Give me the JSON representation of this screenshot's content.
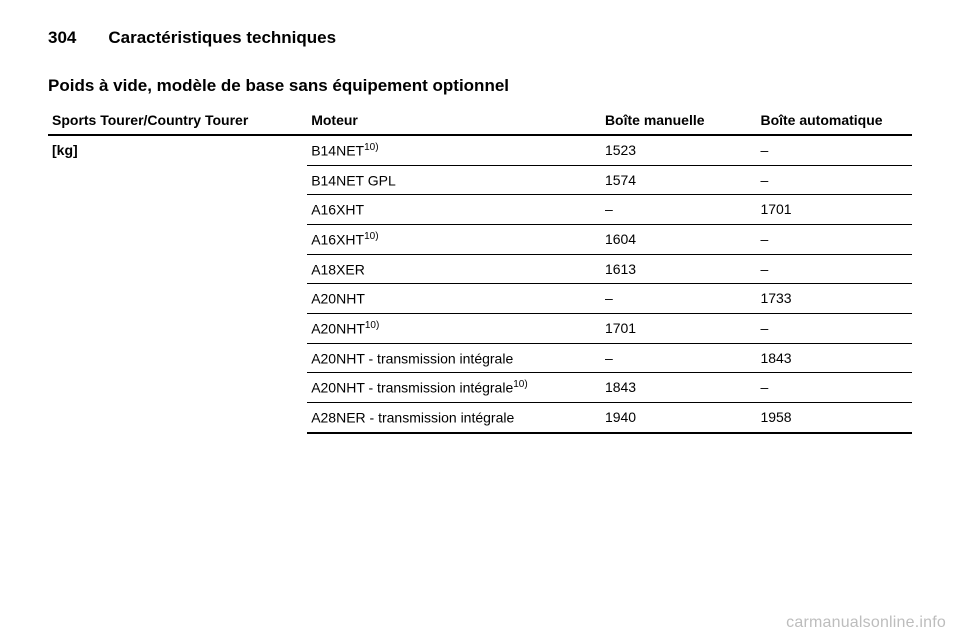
{
  "page_number": "304",
  "chapter_title": "Caractéristiques techniques",
  "subtitle": "Poids à vide, modèle de base sans équipement optionnel",
  "columns": {
    "vehicle": "Sports Tourer/Country Tourer",
    "engine": "Moteur",
    "manual": "Boîte manuelle",
    "auto": "Boîte automatique"
  },
  "unit_label": "[kg]",
  "footnote_marker": "10)",
  "rows": [
    {
      "engine": "B14NET",
      "note": "10)",
      "manual": "1523",
      "auto": "–"
    },
    {
      "engine": "B14NET GPL",
      "note": "",
      "manual": "1574",
      "auto": "–"
    },
    {
      "engine": "A16XHT",
      "note": "",
      "manual": "–",
      "auto": "1701"
    },
    {
      "engine": "A16XHT",
      "note": "10)",
      "manual": "1604",
      "auto": "–"
    },
    {
      "engine": "A18XER",
      "note": "",
      "manual": "1613",
      "auto": "–"
    },
    {
      "engine": "A20NHT",
      "note": "",
      "manual": "–",
      "auto": "1733"
    },
    {
      "engine": "A20NHT",
      "note": "10)",
      "manual": "1701",
      "auto": "–"
    },
    {
      "engine": "A20NHT - transmission intégrale",
      "note": "",
      "manual": "–",
      "auto": "1843"
    },
    {
      "engine": "A20NHT - transmission intégrale",
      "note": "10)",
      "manual": "1843",
      "auto": "–"
    },
    {
      "engine": "A28NER - transmission intégrale",
      "note": "",
      "manual": "1940",
      "auto": "1958"
    }
  ],
  "watermark": "carmanualsonline.info"
}
